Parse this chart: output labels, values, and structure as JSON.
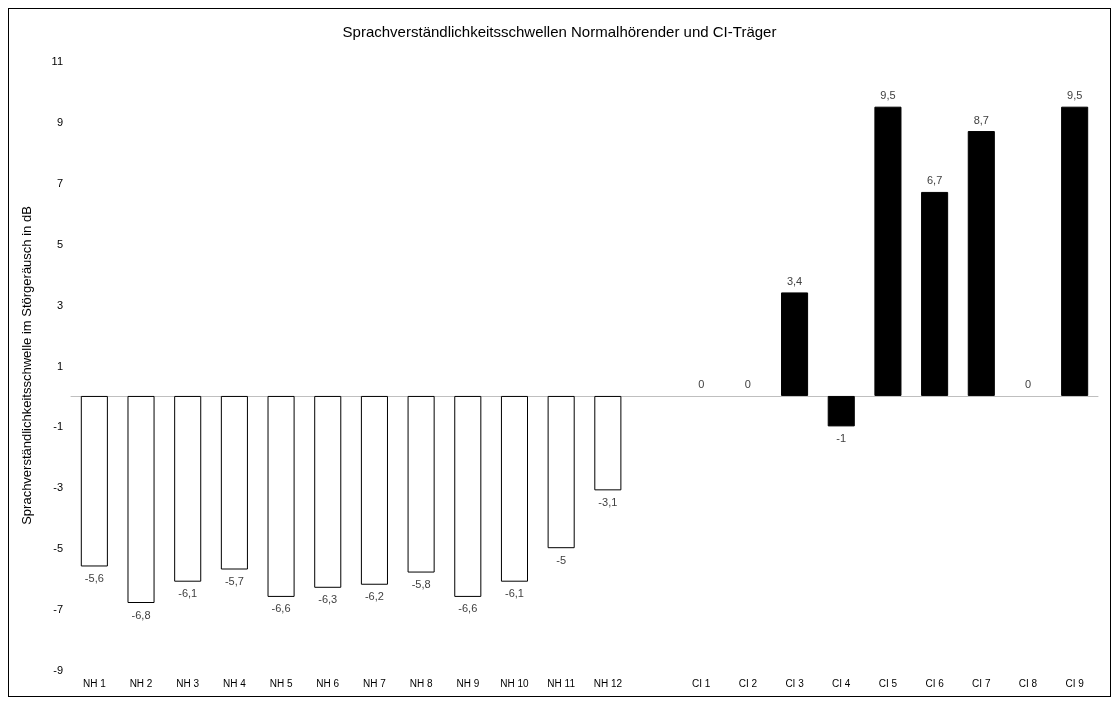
{
  "chart_data": {
    "type": "bar",
    "title": "Sprachverständlichkeitsschwellen Normalhörender und CI-Träger",
    "ylabel": "Sprachverständlichkeitsschwelle im Störgeräusch in dB",
    "categories": [
      "NH 1",
      "NH 2",
      "NH 3",
      "NH 4",
      "NH 5",
      "NH 6",
      "NH 7",
      "NH 8",
      "NH 9",
      "NH 10",
      "NH 11",
      "NH 12",
      null,
      "CI 1",
      "CI 2",
      "CI 3",
      "CI 4",
      "CI 5",
      "CI 6",
      "CI 7",
      "CI 8",
      "CI 9"
    ],
    "values": [
      -5.6,
      -6.8,
      -6.1,
      -5.7,
      -6.6,
      -6.3,
      -6.2,
      -5.8,
      -6.6,
      -6.1,
      -5,
      -3.1,
      null,
      0,
      0,
      3.4,
      -1,
      9.5,
      6.7,
      8.7,
      0,
      9.5
    ],
    "value_labels": [
      "-5,6",
      "-6,8",
      "-6,1",
      "-5,7",
      "-6,6",
      "-6,3",
      "-6,2",
      "-5,8",
      "-6,6",
      "-6,1",
      "-5",
      "-3,1",
      null,
      "0",
      "0",
      "3,4",
      "-1",
      "9,5",
      "6,7",
      "8,7",
      "0",
      "9,5"
    ],
    "colors": [
      "#ffffff",
      "#ffffff",
      "#ffffff",
      "#ffffff",
      "#ffffff",
      "#ffffff",
      "#ffffff",
      "#ffffff",
      "#ffffff",
      "#ffffff",
      "#ffffff",
      "#ffffff",
      null,
      "#000000",
      "#000000",
      "#000000",
      "#000000",
      "#000000",
      "#000000",
      "#000000",
      "#000000",
      "#000000"
    ],
    "ylim": [
      -9,
      11
    ],
    "yticks": [
      -9,
      -7,
      -5,
      -3,
      -1,
      1,
      3,
      5,
      7,
      9,
      11
    ],
    "grid": false
  }
}
